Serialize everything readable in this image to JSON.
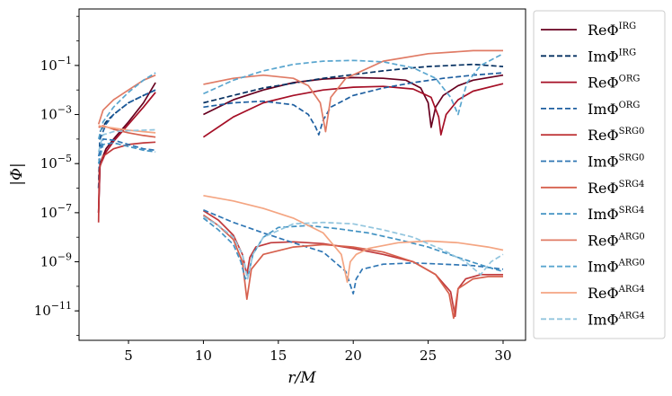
{
  "chart_data": {
    "type": "line",
    "xlabel": "r/M",
    "ylabel": "|Φ|",
    "xlim": [
      1.7,
      31.5
    ],
    "ylim_log10": [
      -12.2,
      1.3
    ],
    "yscale": "log",
    "x_ticks": [
      5,
      10,
      15,
      20,
      25,
      30
    ],
    "y_ticks": [
      {
        "exp": -1,
        "label": "10",
        "sup": "−1"
      },
      {
        "exp": -3,
        "label": "10",
        "sup": "−3"
      },
      {
        "exp": -5,
        "label": "10",
        "sup": "−5"
      },
      {
        "exp": -7,
        "label": "10",
        "sup": "−7"
      },
      {
        "exp": -9,
        "label": "10",
        "sup": "−9"
      },
      {
        "exp": -11,
        "label": "10",
        "sup": "−11"
      }
    ],
    "grid": false,
    "legend_position": "outside-right",
    "series": [
      {
        "name": "ReΦ",
        "sup": "IRG",
        "color": "#67001f",
        "dash": "solid",
        "segments": [
          {
            "x": [
              3.0,
              3.1,
              3.5,
              4.0,
              5.0,
              6.0,
              6.8
            ],
            "y": [
              1e-07,
              1e-05,
              4e-05,
              0.0001,
              0.0005,
              0.003,
              0.02
            ]
          },
          {
            "x": [
              10,
              12,
              14,
              16,
              18,
              20,
              22,
              23.5,
              24.5,
              25.0,
              25.2,
              25.5,
              26,
              27,
              28,
              30
            ],
            "y": [
              0.001,
              0.004,
              0.01,
              0.02,
              0.028,
              0.032,
              0.03,
              0.025,
              0.012,
              0.003,
              0.0003,
              0.002,
              0.006,
              0.015,
              0.025,
              0.04
            ]
          }
        ]
      },
      {
        "name": "ImΦ",
        "sup": "IRG",
        "color": "#053061",
        "dash": "dashed",
        "segments": [
          {
            "x": [
              3.0,
              3.1,
              3.5,
              4.0,
              5.0,
              6.0,
              6.8
            ],
            "y": [
              1e-06,
              0.0002,
              0.0005,
              0.001,
              0.003,
              0.006,
              0.01
            ]
          },
          {
            "x": [
              10,
              14,
              18,
              22,
              24,
              25,
              28,
              30
            ],
            "y": [
              0.003,
              0.012,
              0.03,
              0.06,
              0.08,
              0.09,
              0.11,
              0.09
            ]
          }
        ]
      },
      {
        "name": "ReΦ",
        "sup": "ORG",
        "color": "#a50f26",
        "dash": "solid",
        "segments": [
          {
            "x": [
              3.0,
              3.1,
              3.5,
              4.0,
              5.0,
              6.0,
              6.8
            ],
            "y": [
              1e-07,
              8e-06,
              3e-05,
              8e-05,
              0.0004,
              0.002,
              0.008
            ]
          },
          {
            "x": [
              10,
              12,
              14,
              16,
              18,
              20,
              22,
              24,
              25.2,
              25.7,
              25.85,
              26.2,
              27,
              28,
              30
            ],
            "y": [
              0.00012,
              0.0008,
              0.003,
              0.006,
              0.01,
              0.013,
              0.014,
              0.011,
              0.005,
              0.0008,
              0.00015,
              0.001,
              0.004,
              0.009,
              0.018
            ]
          }
        ]
      },
      {
        "name": "ImΦ",
        "sup": "ORG",
        "color": "#1e5fa0",
        "dash": "dashed",
        "segments": [
          {
            "x": [
              3.0,
              3.1,
              3.5,
              4.0,
              5.0,
              6.0,
              6.8
            ],
            "y": [
              1e-06,
              0.0001,
              0.0004,
              0.001,
              0.003,
              0.006,
              0.01
            ]
          },
          {
            "x": [
              10,
              12,
              14,
              16,
              17,
              17.5,
              17.7,
              18.0,
              18.5,
              20,
              22,
              24,
              26,
              28,
              30
            ],
            "y": [
              0.002,
              0.003,
              0.0035,
              0.0025,
              0.001,
              0.0003,
              0.00015,
              0.0006,
              0.002,
              0.006,
              0.012,
              0.02,
              0.03,
              0.04,
              0.05
            ]
          }
        ]
      },
      {
        "name": "ReΦ",
        "sup": "SRG0",
        "color": "#c0393b",
        "dash": "solid",
        "segments": [
          {
            "x": [
              3.0,
              3.05,
              3.3,
              4.0,
              5.0,
              6.0,
              6.8
            ],
            "y": [
              4e-08,
              6e-06,
              2e-05,
              4e-05,
              6e-05,
              7e-05,
              7.5e-05
            ]
          },
          {
            "x": [
              10,
              11,
              12,
              12.6,
              12.9,
              13.1,
              13.5,
              14.5,
              16,
              18,
              20,
              22,
              24,
              25.5,
              26.5,
              26.8,
              27.0,
              27.5,
              28.5,
              30
            ],
            "y": [
              1.2e-07,
              5e-08,
              1.2e-08,
              2e-09,
              3e-10,
              1.5e-09,
              4e-09,
              6e-09,
              6.5e-09,
              5.5e-09,
              3.5e-09,
              2e-09,
              1e-09,
              3e-10,
              6e-11,
              6e-12,
              8e-11,
              2e-10,
              3e-10,
              3e-10
            ]
          }
        ]
      },
      {
        "name": "ImΦ",
        "sup": "SRG0",
        "color": "#2f76b4",
        "dash": "dashed",
        "segments": [
          {
            "x": [
              3.0,
              3.3,
              4.0,
              5.0,
              6.0,
              6.8
            ],
            "y": [
              2e-05,
              0.0001,
              9e-05,
              6e-05,
              4e-05,
              3.5e-05
            ]
          },
          {
            "x": [
              10,
              12,
              14,
              16,
              18,
              19.5,
              20.0,
              20.2,
              20.6,
              22,
              24,
              26,
              28,
              30
            ],
            "y": [
              1.3e-07,
              4e-08,
              1.5e-08,
              6e-09,
              2.5e-09,
              4e-10,
              5e-11,
              2e-10,
              5e-10,
              8e-10,
              9e-10,
              8e-10,
              7e-10,
              5e-10
            ]
          }
        ]
      },
      {
        "name": "ReΦ",
        "sup": "SRG4",
        "color": "#d6604d",
        "dash": "solid",
        "segments": [
          {
            "x": [
              3.0,
              3.3,
              4.0,
              5.0,
              6.0,
              6.8
            ],
            "y": [
              0.0003,
              0.00035,
              0.00025,
              0.00018,
              0.00014,
              0.00012
            ]
          },
          {
            "x": [
              10,
              11,
              12,
              12.6,
              12.9,
              13.2,
              14,
              16,
              18,
              20,
              22,
              24,
              25.5,
              26.4,
              26.7,
              27.0,
              28,
              29,
              30
            ],
            "y": [
              8e-08,
              3e-08,
              8e-09,
              1e-09,
              3e-11,
              5e-10,
              2e-09,
              4e-09,
              5e-09,
              4e-09,
              2.5e-09,
              1e-09,
              3e-10,
              5e-11,
              5e-12,
              8e-11,
              2e-10,
              2.5e-10,
              2.5e-10
            ]
          }
        ]
      },
      {
        "name": "ImΦ",
        "sup": "SRG4",
        "color": "#4393c3",
        "dash": "dashed",
        "segments": [
          {
            "x": [
              3.0,
              3.3,
              4.0,
              5.0,
              6.0,
              6.8
            ],
            "y": [
              1e-05,
              6e-05,
              7e-05,
              5e-05,
              3.5e-05,
              3e-05
            ]
          },
          {
            "x": [
              10,
              11,
              12,
              12.5,
              12.8,
              13.0,
              13.3,
              14,
              15,
              17,
              19,
              21,
              23,
              25,
              27,
              29,
              30
            ],
            "y": [
              6e-08,
              2e-08,
              5e-09,
              1e-09,
              2e-10,
              3e-10,
              2e-09,
              1e-08,
              2.5e-08,
              3e-08,
              2.2e-08,
              1.5e-08,
              8e-09,
              4e-09,
              1.5e-09,
              6e-10,
              4e-10
            ]
          }
        ]
      },
      {
        "name": "ReΦ",
        "sup": "ARG0",
        "color": "#e07b65",
        "dash": "solid",
        "segments": [
          {
            "x": [
              3.0,
              3.3,
              4.0,
              5.0,
              6.0,
              6.8
            ],
            "y": [
              0.0004,
              0.0015,
              0.004,
              0.01,
              0.025,
              0.04
            ]
          },
          {
            "x": [
              10,
              12,
              14,
              16,
              17,
              17.8,
              18.15,
              18.5,
              19.5,
              22,
              25,
              28,
              30
            ],
            "y": [
              0.017,
              0.03,
              0.04,
              0.03,
              0.015,
              0.003,
              0.0002,
              0.005,
              0.03,
              0.15,
              0.3,
              0.4,
              0.4
            ]
          }
        ]
      },
      {
        "name": "ImΦ",
        "sup": "ARG0",
        "color": "#5aa6cf",
        "dash": "dashed",
        "segments": [
          {
            "x": [
              3.0,
              3.3,
              4.0,
              5.0,
              6.0,
              6.8
            ],
            "y": [
              0.0001,
              0.0005,
              0.002,
              0.008,
              0.025,
              0.05
            ]
          },
          {
            "x": [
              10,
              12,
              14,
              16,
              18,
              20,
              22,
              24,
              25.5,
              26.5,
              27.0,
              27.3,
              27.6,
              28.5,
              30
            ],
            "y": [
              0.007,
              0.025,
              0.06,
              0.11,
              0.15,
              0.16,
              0.14,
              0.08,
              0.03,
              0.005,
              0.001,
              0.005,
              0.02,
              0.1,
              0.3
            ]
          }
        ]
      },
      {
        "name": "ReΦ",
        "sup": "ARG4",
        "color": "#f4a582",
        "dash": "solid",
        "segments": [
          {
            "x": [
              3.0,
              3.3,
              4.0,
              5.0,
              6.0,
              6.8
            ],
            "y": [
              0.00035,
              0.00032,
              0.00028,
              0.00023,
              0.0002,
              0.00018
            ]
          },
          {
            "x": [
              10,
              12,
              14,
              16,
              18,
              19.2,
              19.6,
              19.8,
              20.2,
              21,
              23,
              25,
              27,
              29,
              30
            ],
            "y": [
              5e-07,
              3e-07,
              1.5e-07,
              6e-08,
              1.5e-08,
              2e-09,
              1.5e-10,
              1e-09,
              2e-09,
              3.5e-09,
              6e-09,
              7e-09,
              6e-09,
              4e-09,
              3e-09
            ]
          }
        ]
      },
      {
        "name": "ImΦ",
        "sup": "ARG4",
        "color": "#92c5de",
        "dash": "dashed",
        "segments": [
          {
            "x": [
              3.0,
              3.3,
              4.0,
              5.0,
              6.0,
              6.8
            ],
            "y": [
              3e-05,
              0.00015,
              0.0002,
              0.00022,
              0.00023,
              0.00024
            ]
          },
          {
            "x": [
              10,
              11,
              12,
              12.6,
              12.95,
              13.3,
              14,
              16,
              18,
              20,
              22,
              24,
              26,
              27.5,
              28.5,
              29.2,
              30
            ],
            "y": [
              7e-08,
              3e-08,
              1e-08,
              2e-09,
              2e-10,
              2e-09,
              1e-08,
              3.5e-08,
              4e-08,
              3.5e-08,
              2e-08,
              1e-08,
              3e-09,
              1e-09,
              3e-10,
              1e-09,
              2e-09
            ]
          }
        ]
      }
    ]
  }
}
